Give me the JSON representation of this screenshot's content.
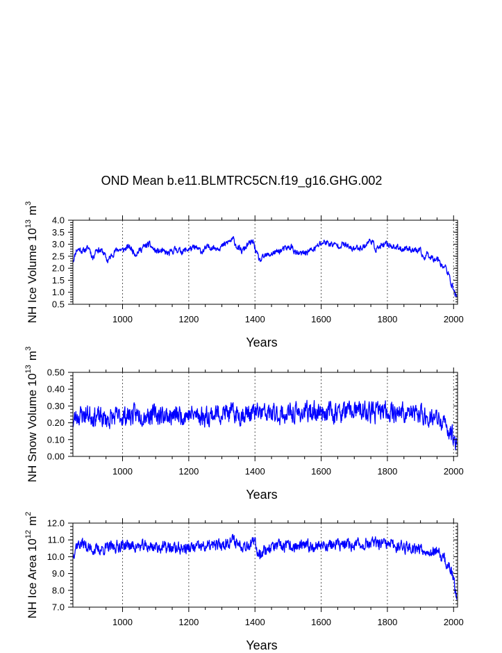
{
  "chart_data": {
    "title": "OND Mean b.e11.BLMTRC5CN.f19_g16.GHG.002",
    "line_color": "#0000ff",
    "panels": [
      {
        "type": "line",
        "name": "ice-volume",
        "ylabel": {
          "main": "NH Ice Volume 10",
          "exponent": "13",
          "unit": "m",
          "unit_exponent": "3"
        },
        "xlabel": "Years",
        "xlim": [
          850,
          2012
        ],
        "ylim": [
          0.5,
          4.0
        ],
        "xticks": [
          1000,
          1200,
          1400,
          1600,
          1800,
          2000
        ],
        "xtick_labels": [
          "1000",
          "1200",
          "1400",
          "1600",
          "1800",
          "2000"
        ],
        "yticks": [
          0.5,
          1.0,
          1.5,
          2.0,
          2.5,
          3.0,
          3.5,
          4.0
        ],
        "ytick_labels": [
          "0.5",
          "1.0",
          "1.5",
          "2.0",
          "2.5",
          "3.0",
          "3.5",
          "4.0"
        ],
        "vgrid": [
          1000,
          1200,
          1400,
          1600,
          1800,
          2000
        ],
        "anchors": [
          [
            850,
            2.3
          ],
          [
            855,
            2.5
          ],
          [
            860,
            2.75
          ],
          [
            870,
            2.8
          ],
          [
            880,
            2.7
          ],
          [
            890,
            2.8
          ],
          [
            900,
            2.85
          ],
          [
            910,
            2.4
          ],
          [
            920,
            2.8
          ],
          [
            940,
            2.7
          ],
          [
            955,
            2.3
          ],
          [
            970,
            2.6
          ],
          [
            985,
            2.8
          ],
          [
            1000,
            2.75
          ],
          [
            1020,
            2.9
          ],
          [
            1040,
            2.6
          ],
          [
            1060,
            2.85
          ],
          [
            1080,
            3.0
          ],
          [
            1100,
            2.7
          ],
          [
            1120,
            2.7
          ],
          [
            1140,
            2.6
          ],
          [
            1160,
            2.8
          ],
          [
            1180,
            2.7
          ],
          [
            1200,
            2.8
          ],
          [
            1220,
            2.85
          ],
          [
            1240,
            2.7
          ],
          [
            1260,
            2.9
          ],
          [
            1280,
            2.85
          ],
          [
            1300,
            2.9
          ],
          [
            1320,
            3.1
          ],
          [
            1335,
            3.2
          ],
          [
            1345,
            2.9
          ],
          [
            1360,
            2.7
          ],
          [
            1380,
            3.0
          ],
          [
            1395,
            3.1
          ],
          [
            1405,
            2.6
          ],
          [
            1415,
            2.3
          ],
          [
            1430,
            2.5
          ],
          [
            1450,
            2.6
          ],
          [
            1470,
            2.7
          ],
          [
            1490,
            2.8
          ],
          [
            1510,
            2.9
          ],
          [
            1525,
            2.6
          ],
          [
            1540,
            2.6
          ],
          [
            1560,
            2.7
          ],
          [
            1580,
            2.8
          ],
          [
            1595,
            3.0
          ],
          [
            1610,
            3.1
          ],
          [
            1630,
            3.0
          ],
          [
            1650,
            2.95
          ],
          [
            1670,
            3.0
          ],
          [
            1690,
            2.8
          ],
          [
            1710,
            2.85
          ],
          [
            1730,
            2.9
          ],
          [
            1750,
            3.2
          ],
          [
            1765,
            2.8
          ],
          [
            1780,
            2.9
          ],
          [
            1800,
            3.0
          ],
          [
            1820,
            2.9
          ],
          [
            1840,
            2.8
          ],
          [
            1860,
            2.85
          ],
          [
            1880,
            2.75
          ],
          [
            1900,
            2.7
          ],
          [
            1910,
            2.4
          ],
          [
            1920,
            2.6
          ],
          [
            1940,
            2.4
          ],
          [
            1955,
            2.4
          ],
          [
            1965,
            2.1
          ],
          [
            1975,
            2.05
          ],
          [
            1985,
            1.7
          ],
          [
            1995,
            1.3
          ],
          [
            2000,
            1.1
          ],
          [
            2005,
            0.9
          ],
          [
            2010,
            0.85
          ]
        ],
        "noise_amp": 0.22,
        "seed": 11
      },
      {
        "type": "line",
        "name": "snow-volume",
        "ylabel": {
          "main": "NH Snow Volume 10",
          "exponent": "13",
          "unit": "m",
          "unit_exponent": "3"
        },
        "xlabel": "Years",
        "xlim": [
          850,
          2012
        ],
        "ylim": [
          0.0,
          0.5
        ],
        "xticks": [
          1000,
          1200,
          1400,
          1600,
          1800,
          2000
        ],
        "xtick_labels": [
          "1000",
          "1200",
          "1400",
          "1600",
          "1800",
          "2000"
        ],
        "yticks": [
          0.0,
          0.1,
          0.2,
          0.3,
          0.4,
          0.5
        ],
        "ytick_labels": [
          "0.00",
          "0.10",
          "0.20",
          "0.30",
          "0.40",
          "0.50"
        ],
        "vgrid": [
          1000,
          1200,
          1400,
          1600,
          1800,
          2000
        ],
        "anchors": [
          [
            850,
            0.2
          ],
          [
            860,
            0.24
          ],
          [
            880,
            0.25
          ],
          [
            900,
            0.25
          ],
          [
            950,
            0.22
          ],
          [
            1000,
            0.24
          ],
          [
            1050,
            0.25
          ],
          [
            1100,
            0.25
          ],
          [
            1150,
            0.24
          ],
          [
            1200,
            0.25
          ],
          [
            1250,
            0.24
          ],
          [
            1300,
            0.26
          ],
          [
            1350,
            0.25
          ],
          [
            1400,
            0.26
          ],
          [
            1450,
            0.25
          ],
          [
            1500,
            0.25
          ],
          [
            1550,
            0.26
          ],
          [
            1600,
            0.27
          ],
          [
            1650,
            0.26
          ],
          [
            1700,
            0.27
          ],
          [
            1750,
            0.26
          ],
          [
            1800,
            0.27
          ],
          [
            1850,
            0.26
          ],
          [
            1900,
            0.25
          ],
          [
            1950,
            0.22
          ],
          [
            1980,
            0.17
          ],
          [
            2000,
            0.12
          ],
          [
            2010,
            0.09
          ]
        ],
        "noise_amp": 0.1,
        "seed": 23
      },
      {
        "type": "line",
        "name": "ice-area",
        "ylabel": {
          "main": "NH Ice Area 10",
          "exponent": "12",
          "unit": "m",
          "unit_exponent": "2"
        },
        "xlabel": "Years",
        "xlim": [
          850,
          2012
        ],
        "ylim": [
          7.0,
          12.0
        ],
        "xticks": [
          1000,
          1200,
          1400,
          1600,
          1800,
          2000
        ],
        "xtick_labels": [
          "1000",
          "1200",
          "1400",
          "1600",
          "1800",
          "2000"
        ],
        "yticks": [
          7.0,
          8.0,
          9.0,
          10.0,
          11.0,
          12.0
        ],
        "ytick_labels": [
          "7.0",
          "8.0",
          "9.0",
          "10.0",
          "11.0",
          "12.0"
        ],
        "vgrid": [
          1000,
          1200,
          1400,
          1600,
          1800,
          2000
        ],
        "anchors": [
          [
            850,
            10.1
          ],
          [
            860,
            10.7
          ],
          [
            880,
            10.8
          ],
          [
            900,
            10.5
          ],
          [
            920,
            10.4
          ],
          [
            950,
            10.5
          ],
          [
            980,
            10.6
          ],
          [
            1000,
            10.7
          ],
          [
            1050,
            10.6
          ],
          [
            1100,
            10.6
          ],
          [
            1150,
            10.5
          ],
          [
            1200,
            10.5
          ],
          [
            1250,
            10.6
          ],
          [
            1300,
            10.7
          ],
          [
            1330,
            11.0
          ],
          [
            1360,
            10.7
          ],
          [
            1400,
            10.8
          ],
          [
            1410,
            10.2
          ],
          [
            1420,
            10.3
          ],
          [
            1450,
            10.6
          ],
          [
            1500,
            10.6
          ],
          [
            1550,
            10.6
          ],
          [
            1600,
            10.7
          ],
          [
            1650,
            10.7
          ],
          [
            1700,
            10.7
          ],
          [
            1750,
            10.8
          ],
          [
            1800,
            10.7
          ],
          [
            1850,
            10.6
          ],
          [
            1900,
            10.5
          ],
          [
            1950,
            10.2
          ],
          [
            1970,
            9.9
          ],
          [
            1985,
            9.4
          ],
          [
            1995,
            9.0
          ],
          [
            2000,
            8.6
          ],
          [
            2005,
            8.0
          ],
          [
            2010,
            7.7
          ]
        ],
        "noise_amp": 0.6,
        "seed": 37
      }
    ]
  }
}
